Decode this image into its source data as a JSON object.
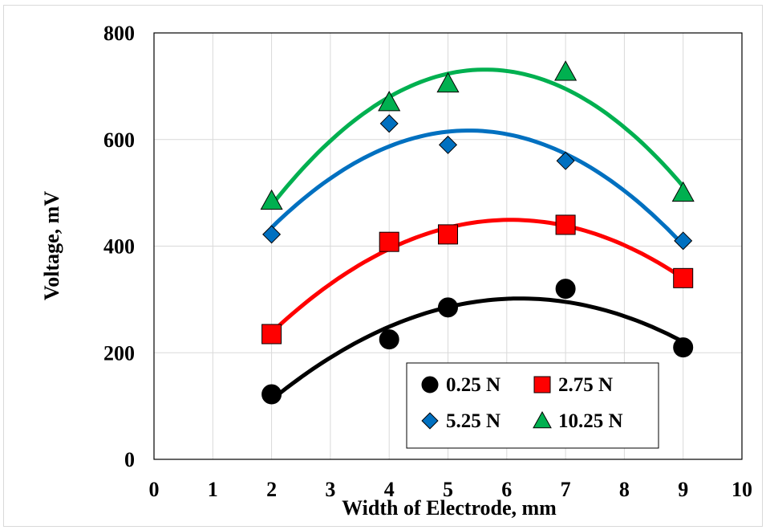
{
  "chart_data": {
    "type": "scatter",
    "title": "",
    "xlabel": "Width of Electrode, mm",
    "ylabel": "Voltage, mV",
    "xlim": [
      0,
      10
    ],
    "ylim": [
      0,
      800
    ],
    "x_ticks": [
      0,
      1,
      2,
      3,
      4,
      5,
      6,
      7,
      8,
      9,
      10
    ],
    "y_ticks": [
      0,
      200,
      400,
      600,
      800
    ],
    "grid": true,
    "legend_position": "bottom-right",
    "trendline": "quadratic",
    "series": [
      {
        "name": "0.25 N",
        "marker": "circle",
        "color": "#000000",
        "x": [
          2,
          4,
          5,
          7,
          9
        ],
        "y": [
          122,
          225,
          285,
          320,
          210
        ]
      },
      {
        "name": "2.75 N",
        "marker": "square",
        "color": "#ff0000",
        "x": [
          2,
          4,
          5,
          7,
          9
        ],
        "y": [
          235,
          408,
          422,
          440,
          340
        ]
      },
      {
        "name": "5.25 N",
        "marker": "diamond",
        "color": "#0070c0",
        "x": [
          2,
          4,
          5,
          7,
          9
        ],
        "y": [
          422,
          630,
          590,
          560,
          410
        ]
      },
      {
        "name": "10.25 N",
        "marker": "triangle",
        "color": "#00b050",
        "x": [
          2,
          4,
          5,
          7,
          9
        ],
        "y": [
          485,
          670,
          705,
          727,
          500
        ]
      }
    ]
  }
}
